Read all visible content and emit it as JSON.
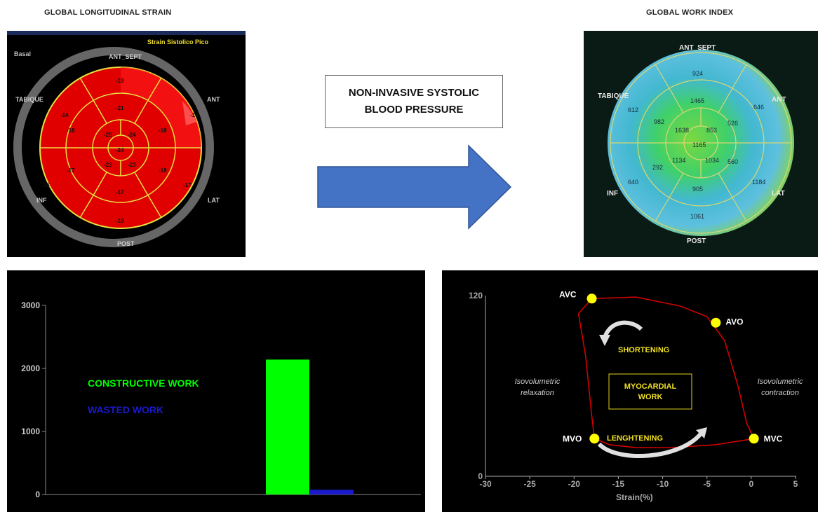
{
  "titles": {
    "left": "GLOBAL  LONGITUDINAL STRAIN",
    "right": "GLOBAL WORK INDEX"
  },
  "center_box": {
    "line1": "NON-INVASIVE SYSTOLIC",
    "line2": "BLOOD PRESSURE"
  },
  "strain_map": {
    "header": "Strain Sistolico Pico",
    "basal": "Basal",
    "labels": {
      "top": "ANT_SEPT",
      "upper_left": "TABIQUE",
      "upper_right": "ANT",
      "lower_left": "INF",
      "lower_right": "LAT",
      "bottom": "POST"
    },
    "values": {
      "outer": [
        "-19",
        "-14",
        "-17",
        "-18",
        "-15",
        "-14"
      ],
      "mid": [
        "-21",
        "-18",
        "-18",
        "-17",
        "-17",
        "-18"
      ],
      "apical": [
        "-25",
        "-24",
        "-23",
        "-23"
      ],
      "apex": "-24"
    },
    "colors": {
      "fill": "#dd0000",
      "line": "#e8e040"
    }
  },
  "work_map": {
    "labels": {
      "top": "ANT_SEPT",
      "upper_left": "TABIQUE",
      "upper_right": "ANT",
      "lower_left": "INF",
      "lower_right": "LAT",
      "bottom": "POST"
    },
    "values": {
      "outer": [
        "924",
        "646",
        "1184",
        "1061",
        "640",
        "612"
      ],
      "mid": [
        "1465",
        "526",
        "560",
        "905",
        "292",
        "982"
      ],
      "apical": [
        "1638",
        "853",
        "1034",
        "1134"
      ],
      "apex": "1165"
    }
  },
  "chart_data": [
    {
      "type": "bar",
      "categories": [
        "CONSTRUCTIVE WORK",
        "WASTED WORK"
      ],
      "values": [
        2140,
        75
      ],
      "ylim": [
        0,
        3000
      ],
      "yticks": [
        "0",
        "1000",
        "2000",
        "3000"
      ],
      "legend": [
        {
          "name": "CONSTRUCTIVE WORK",
          "color": "#00ff00"
        },
        {
          "name": "WASTED WORK",
          "color": "#1a1acc"
        }
      ]
    },
    {
      "type": "line",
      "x_label": "Strain(%)",
      "xlim": [
        -30,
        5
      ],
      "ylim": [
        0,
        120
      ],
      "xticks": [
        "-30",
        "-25",
        "-20",
        "-15",
        "-10",
        "-5",
        "0",
        "5"
      ],
      "yticks": [
        "0",
        "120"
      ],
      "loop": [
        [
          -18,
          118
        ],
        [
          -13,
          119
        ],
        [
          -8,
          113
        ],
        [
          -5,
          106
        ],
        [
          -3,
          90
        ],
        [
          -1.5,
          60
        ],
        [
          -0.5,
          35
        ],
        [
          0.3,
          25
        ],
        [
          -4,
          21
        ],
        [
          -9,
          19
        ],
        [
          -13,
          19
        ],
        [
          -16,
          21
        ],
        [
          -17.7,
          25
        ],
        [
          -18,
          40
        ],
        [
          -18.7,
          80
        ],
        [
          -19.5,
          108
        ],
        [
          -18,
          118
        ]
      ],
      "points": [
        {
          "name": "AVC",
          "x": -18,
          "y": 118
        },
        {
          "name": "AVO",
          "x": -4,
          "y": 102
        },
        {
          "name": "MVO",
          "x": -17.7,
          "y": 25
        },
        {
          "name": "MVC",
          "x": 0.3,
          "y": 25
        }
      ],
      "annotations": {
        "shortening": "SHORTENING",
        "lengthening": "LENGHTENING",
        "center_line1": "MYOCARDIAL",
        "center_line2": "WORK",
        "left_line1": "Isovolumetric",
        "left_line2": "relaxation",
        "right_line1": "Isovolumetric",
        "right_line2": "contraction"
      }
    }
  ]
}
